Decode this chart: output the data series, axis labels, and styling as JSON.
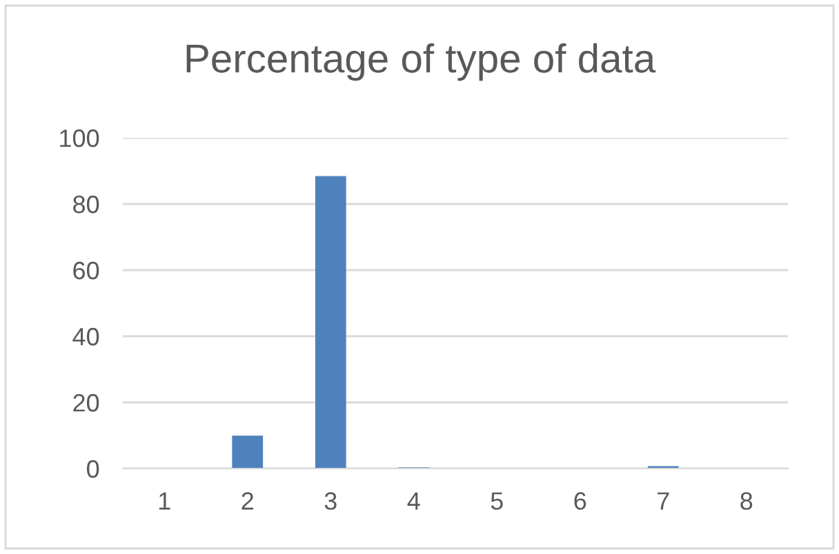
{
  "chart_data": {
    "type": "bar",
    "title": "Percentage of type of data",
    "categories": [
      "1",
      "2",
      "3",
      "4",
      "5",
      "6",
      "7",
      "8"
    ],
    "values": [
      0,
      9.8,
      88.3,
      0.2,
      0,
      0,
      0.6,
      0
    ],
    "color": "#4f81bd",
    "ylim": [
      0,
      100
    ],
    "yticks": [
      0,
      20,
      40,
      60,
      80,
      100
    ],
    "grid": "y",
    "legend": false
  }
}
